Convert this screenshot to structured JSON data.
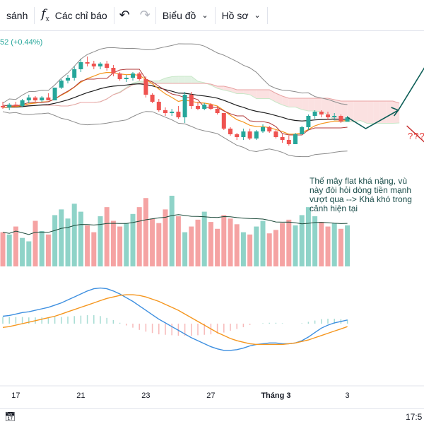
{
  "toolbar": {
    "compare_label": "sánh",
    "indicators_label": "Các chỉ báo",
    "chart_type_label": "Biểu đồ",
    "profile_label": "Hồ sơ"
  },
  "legend": {
    "price_change": "52 (+0.44%)"
  },
  "annotation": {
    "text": "Thế mây flat khá nặng, vù\nnày đòi hỏi dòng tiền mạnh\nvượt qua --> Khá khó trong\ncảnh hiện tại",
    "question_marks": "???"
  },
  "footer": {
    "clock": "17:5"
  },
  "colors": {
    "up": "#26a69a",
    "down": "#ef5350",
    "up_volume": "#8fd3c8",
    "down_volume": "#f5a3a3",
    "ema_fast": "#f5961e",
    "ema_slow": "#1c1c1c",
    "bollinger": "#8c8c8c",
    "macd_line": "#3d8fe0",
    "signal_line": "#f5961e",
    "cloud_bear": "#fbe1e1",
    "cloud_bull": "#e2f2e3",
    "annotation_line": "#0d5e57"
  },
  "icons": {
    "indicators": "fx-icon",
    "undo": "undo-icon",
    "redo": "redo-icon",
    "dropdown": "chevron-down-icon",
    "calendar": "calendar-icon"
  },
  "chart_data": {
    "type": "candlestick",
    "x_tick_labels": [
      {
        "label": "17",
        "index": 2
      },
      {
        "label": "21",
        "index": 12
      },
      {
        "label": "23",
        "index": 22
      },
      {
        "label": "27",
        "index": 32
      },
      {
        "label": "Tháng 3",
        "index": 42
      },
      {
        "label": "3",
        "index": 53
      }
    ],
    "y_range": [
      0,
      100
    ],
    "candles": [
      {
        "o": 52,
        "h": 55,
        "l": 50,
        "c": 51
      },
      {
        "o": 51,
        "h": 54,
        "l": 49,
        "c": 53
      },
      {
        "o": 53,
        "h": 55,
        "l": 51,
        "c": 52
      },
      {
        "o": 52,
        "h": 57,
        "l": 51,
        "c": 56
      },
      {
        "o": 56,
        "h": 60,
        "l": 54,
        "c": 58
      },
      {
        "o": 58,
        "h": 59,
        "l": 55,
        "c": 56
      },
      {
        "o": 56,
        "h": 59,
        "l": 55,
        "c": 58
      },
      {
        "o": 58,
        "h": 61,
        "l": 56,
        "c": 56
      },
      {
        "o": 56,
        "h": 65,
        "l": 56,
        "c": 65
      },
      {
        "o": 65,
        "h": 71,
        "l": 64,
        "c": 70
      },
      {
        "o": 70,
        "h": 74,
        "l": 68,
        "c": 72
      },
      {
        "o": 72,
        "h": 80,
        "l": 70,
        "c": 78
      },
      {
        "o": 78,
        "h": 85,
        "l": 76,
        "c": 83
      },
      {
        "o": 83,
        "h": 87,
        "l": 80,
        "c": 82
      },
      {
        "o": 82,
        "h": 84,
        "l": 78,
        "c": 80
      },
      {
        "o": 80,
        "h": 83,
        "l": 78,
        "c": 82
      },
      {
        "o": 82,
        "h": 84,
        "l": 77,
        "c": 79
      },
      {
        "o": 79,
        "h": 81,
        "l": 73,
        "c": 75
      },
      {
        "o": 75,
        "h": 76,
        "l": 70,
        "c": 71
      },
      {
        "o": 71,
        "h": 74,
        "l": 69,
        "c": 72
      },
      {
        "o": 72,
        "h": 76,
        "l": 70,
        "c": 75
      },
      {
        "o": 75,
        "h": 76,
        "l": 70,
        "c": 71
      },
      {
        "o": 71,
        "h": 73,
        "l": 58,
        "c": 60
      },
      {
        "o": 60,
        "h": 61,
        "l": 54,
        "c": 55
      },
      {
        "o": 55,
        "h": 57,
        "l": 48,
        "c": 49
      },
      {
        "o": 49,
        "h": 51,
        "l": 45,
        "c": 47
      },
      {
        "o": 47,
        "h": 50,
        "l": 45,
        "c": 48
      },
      {
        "o": 48,
        "h": 52,
        "l": 43,
        "c": 44
      },
      {
        "o": 44,
        "h": 62,
        "l": 40,
        "c": 60
      },
      {
        "o": 60,
        "h": 62,
        "l": 50,
        "c": 52
      },
      {
        "o": 52,
        "h": 55,
        "l": 49,
        "c": 50
      },
      {
        "o": 50,
        "h": 54,
        "l": 49,
        "c": 53
      },
      {
        "o": 53,
        "h": 54,
        "l": 49,
        "c": 50
      },
      {
        "o": 50,
        "h": 52,
        "l": 46,
        "c": 47
      },
      {
        "o": 47,
        "h": 47,
        "l": 35,
        "c": 36
      },
      {
        "o": 36,
        "h": 37,
        "l": 31,
        "c": 32
      },
      {
        "o": 32,
        "h": 33,
        "l": 28,
        "c": 30
      },
      {
        "o": 30,
        "h": 36,
        "l": 28,
        "c": 34
      },
      {
        "o": 34,
        "h": 36,
        "l": 28,
        "c": 29
      },
      {
        "o": 29,
        "h": 35,
        "l": 28,
        "c": 34
      },
      {
        "o": 34,
        "h": 39,
        "l": 33,
        "c": 37
      },
      {
        "o": 37,
        "h": 38,
        "l": 33,
        "c": 34
      },
      {
        "o": 34,
        "h": 35,
        "l": 29,
        "c": 30
      },
      {
        "o": 30,
        "h": 32,
        "l": 26,
        "c": 28
      },
      {
        "o": 28,
        "h": 31,
        "l": 24,
        "c": 25
      },
      {
        "o": 25,
        "h": 33,
        "l": 25,
        "c": 32
      },
      {
        "o": 32,
        "h": 38,
        "l": 32,
        "c": 37
      },
      {
        "o": 37,
        "h": 46,
        "l": 35,
        "c": 45
      },
      {
        "o": 45,
        "h": 49,
        "l": 43,
        "c": 48
      },
      {
        "o": 48,
        "h": 49,
        "l": 44,
        "c": 46
      },
      {
        "o": 46,
        "h": 48,
        "l": 42,
        "c": 44
      },
      {
        "o": 44,
        "h": 47,
        "l": 42,
        "c": 45
      },
      {
        "o": 45,
        "h": 46,
        "l": 40,
        "c": 41
      },
      {
        "o": 41,
        "h": 45,
        "l": 41,
        "c": 44
      }
    ],
    "volume": [
      30,
      28,
      35,
      25,
      22,
      40,
      31,
      28,
      45,
      50,
      42,
      55,
      48,
      36,
      30,
      44,
      52,
      40,
      35,
      38,
      46,
      52,
      60,
      42,
      38,
      50,
      62,
      44,
      30,
      35,
      41,
      48,
      39,
      33,
      45,
      42,
      37,
      30,
      28,
      35,
      40,
      29,
      32,
      38,
      41,
      36,
      45,
      52,
      44,
      39,
      35,
      38,
      33,
      36
    ],
    "volume_ma_level": 40,
    "macd": [
      10,
      11,
      13,
      15,
      16,
      18,
      20,
      22,
      25,
      28,
      32,
      36,
      40,
      44,
      47,
      48,
      47,
      44,
      40,
      35,
      30,
      24,
      18,
      12,
      6,
      1,
      -4,
      -9,
      -14,
      -19,
      -23,
      -27,
      -31,
      -34,
      -36,
      -36,
      -35,
      -33,
      -30,
      -28,
      -27,
      -26,
      -26,
      -27,
      -27,
      -26,
      -23,
      -18,
      -12,
      -6,
      -2,
      1,
      3,
      5
    ],
    "signal": [
      -5,
      -4,
      -2,
      0,
      2,
      4,
      6,
      8,
      10,
      13,
      16,
      19,
      22,
      25,
      28,
      31,
      34,
      36,
      38,
      39,
      39,
      38,
      36,
      33,
      30,
      26,
      22,
      18,
      13,
      8,
      3,
      -2,
      -7,
      -12,
      -16,
      -20,
      -23,
      -25,
      -27,
      -28,
      -28,
      -28,
      -28,
      -28,
      -27,
      -26,
      -24,
      -22,
      -19,
      -16,
      -13,
      -10,
      -7,
      -4
    ]
  }
}
